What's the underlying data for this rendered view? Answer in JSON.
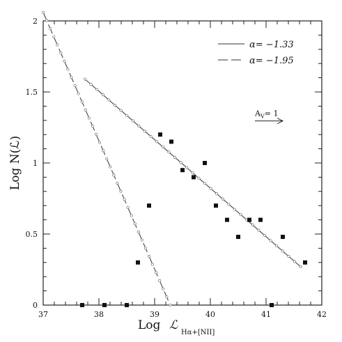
{
  "chart_data": {
    "type": "scatter",
    "title": "",
    "xlabel_main": "Log",
    "xlabel_symbol": "ℒ",
    "xlabel_subscript": "Hα+[NII]",
    "ylabel": "Log N(ℒ)",
    "xlim": [
      37,
      42
    ],
    "ylim": [
      0,
      2
    ],
    "x_ticks": [
      37,
      38,
      39,
      40,
      41,
      42
    ],
    "x_tick_labels": [
      "37",
      "38",
      "39",
      "40",
      "41",
      "42"
    ],
    "y_ticks": [
      0,
      0.5,
      1,
      1.5,
      2
    ],
    "y_tick_labels": [
      "0",
      "0.5",
      "1",
      "1.5",
      "2"
    ],
    "grid": false,
    "points": [
      {
        "x": 37.7,
        "y": 0
      },
      {
        "x": 38.1,
        "y": 0
      },
      {
        "x": 38.5,
        "y": 0
      },
      {
        "x": 38.7,
        "y": 0.3
      },
      {
        "x": 38.9,
        "y": 0.7
      },
      {
        "x": 39.1,
        "y": 1.2
      },
      {
        "x": 39.3,
        "y": 1.15
      },
      {
        "x": 39.5,
        "y": 0.95
      },
      {
        "x": 39.7,
        "y": 0.9
      },
      {
        "x": 39.9,
        "y": 1.0
      },
      {
        "x": 40.1,
        "y": 0.7
      },
      {
        "x": 40.3,
        "y": 0.6
      },
      {
        "x": 40.5,
        "y": 0.48
      },
      {
        "x": 40.7,
        "y": 0.6
      },
      {
        "x": 40.9,
        "y": 0.6
      },
      {
        "x": 41.1,
        "y": 0
      },
      {
        "x": 41.3,
        "y": 0.48
      },
      {
        "x": 41.7,
        "y": 0.3
      }
    ],
    "series": [
      {
        "name": "α= −1.33",
        "style": "solid",
        "x": [
          37.75,
          41.62
        ],
        "y": [
          1.59,
          0.27
        ]
      },
      {
        "name": "α= −1.95",
        "style": "dashed",
        "x": [
          37.0,
          39.28
        ],
        "y": [
          2.06,
          0.0
        ]
      }
    ],
    "legend_position": "top-right",
    "annotation": {
      "label": "A",
      "subscript": "V",
      "text": "= 1",
      "x": 40.8,
      "y": 1.33,
      "arrow_to_x": 41.3
    }
  }
}
